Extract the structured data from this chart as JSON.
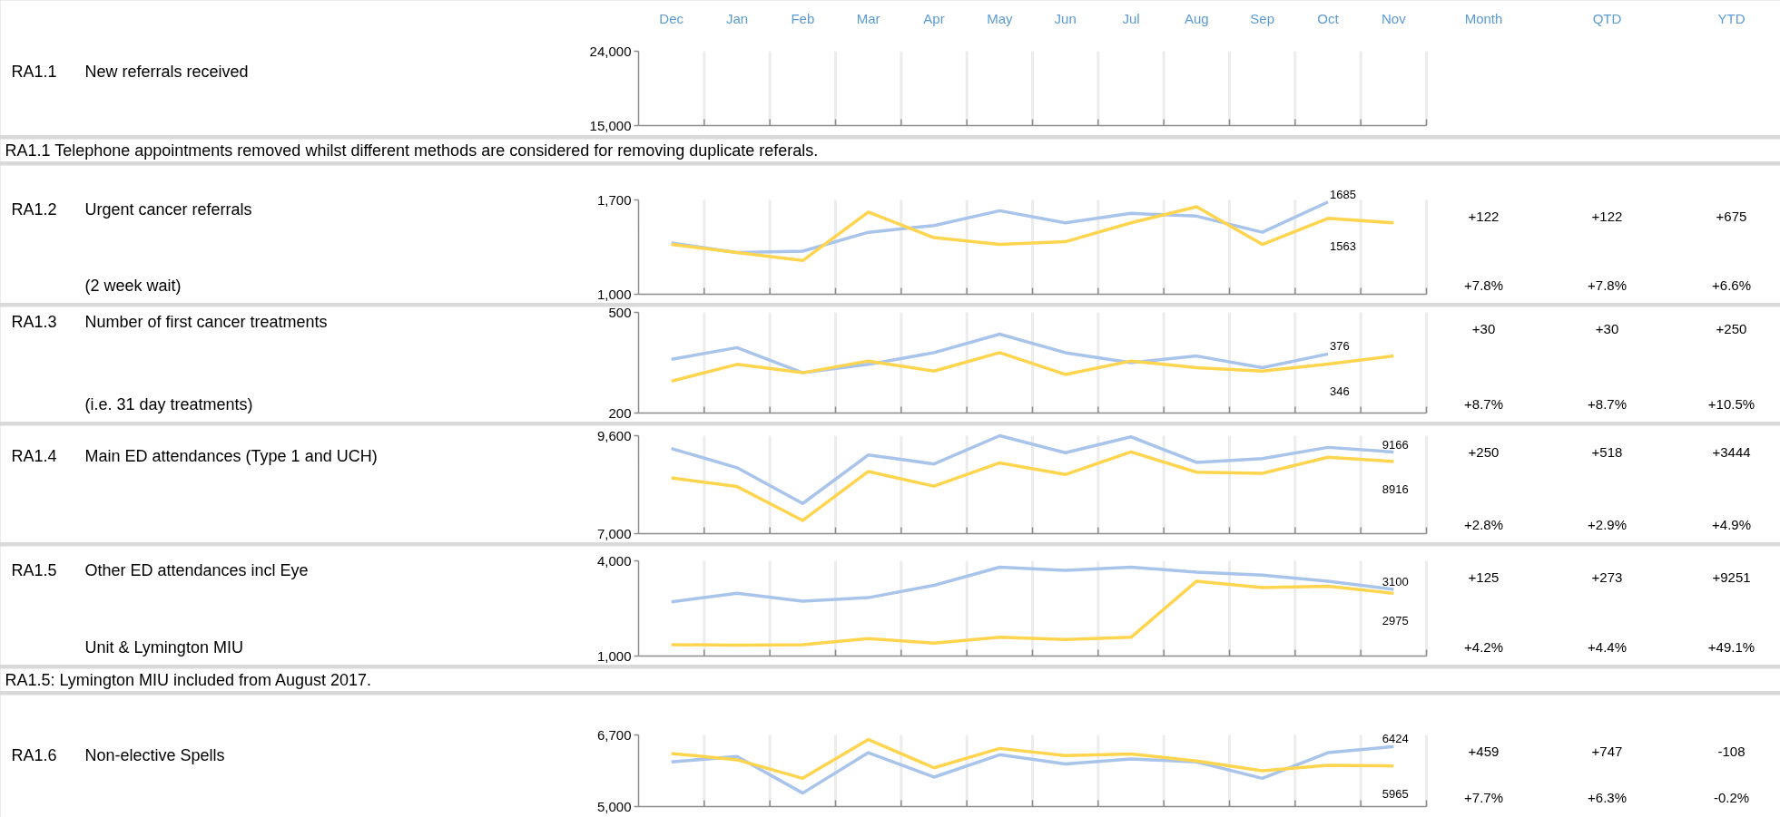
{
  "chart_data": [
    {
      "type": "line",
      "categories": [
        "Dec",
        "Jan",
        "Feb",
        "Mar",
        "Apr",
        "May",
        "Jun",
        "Jul",
        "Aug",
        "Sep",
        "Oct",
        "Nov"
      ],
      "values": [
        null,
        null,
        null,
        null,
        null,
        null,
        null,
        null,
        null,
        null,
        null,
        null
      ],
      "ylim": [
        15000,
        24000
      ],
      "yticks": [
        {
          "value": 15000,
          "label": "15,000"
        },
        {
          "value": 24000,
          "label": "24,000"
        }
      ],
      "grid": "x",
      "annotations": [
        "RA1.1",
        "New referrals received",
        "Month",
        "QTD",
        "YTD"
      ]
    },
    {
      "type": "other",
      "title": "RA1.1 Telephone appointments removed whilst different methods are considered for removing duplicate referals."
    },
    {
      "type": "line",
      "categories": [
        null,
        null,
        null,
        null,
        null,
        null,
        null,
        null,
        null,
        null,
        null,
        null
      ],
      "grid": "x",
      "ylim": [
        1000,
        1700
      ],
      "yticks": [
        {
          "value": 1000,
          "label": "1,000"
        },
        {
          "value": 1700,
          "label": "1,700"
        }
      ],
      "series": [
        {
          "color": "#a9c4eb",
          "values": [
            1380,
            1310,
            1320,
            1460,
            1510,
            1620,
            1530,
            1600,
            1580,
            1460,
            1685,
            null
          ],
          "value_labels": [
            null,
            null,
            null,
            null,
            null,
            null,
            null,
            null,
            null,
            null,
            "1685",
            null
          ]
        },
        {
          "color": "#ffd54f",
          "values": [
            1370,
            1310,
            1250,
            1610,
            1420,
            1370,
            1390,
            1530,
            1650,
            1370,
            1563,
            1530
          ],
          "value_labels": [
            null,
            null,
            null,
            null,
            null,
            null,
            null,
            null,
            null,
            null,
            "1563",
            null
          ]
        }
      ],
      "annotations": [
        "RA1.2",
        "Urgent cancer referrals",
        "(2 week wait)",
        "+122",
        "+122",
        "+675",
        "+7.8%",
        "+7.8%",
        "+6.6%"
      ]
    },
    {
      "type": "line",
      "categories": [
        null,
        null,
        null,
        null,
        null,
        null,
        null,
        null,
        null,
        null,
        null,
        null
      ],
      "grid": "x",
      "ylim": [
        200,
        500
      ],
      "yticks": [
        200,
        500
      ],
      "series": [
        {
          "color": "#a9c4eb",
          "values": [
            360,
            395,
            320,
            345,
            380,
            435,
            380,
            350,
            370,
            335,
            376,
            null
          ],
          "value_labels": [
            null,
            null,
            null,
            null,
            null,
            null,
            null,
            null,
            null,
            null,
            "376",
            null
          ]
        },
        {
          "color": "#ffd54f",
          "values": [
            295,
            345,
            320,
            355,
            325,
            380,
            315,
            355,
            335,
            325,
            346,
            370
          ],
          "value_labels": [
            null,
            null,
            null,
            null,
            null,
            null,
            null,
            null,
            null,
            null,
            "346",
            null
          ]
        }
      ],
      "annotations": [
        "RA1.3",
        "Number of first cancer treatments",
        "(i.e. 31 day treatments)",
        "+30",
        "+30",
        "+250",
        "+8.7%",
        "+8.7%",
        "+10.5%"
      ]
    },
    {
      "type": "line",
      "categories": [
        null,
        null,
        null,
        null,
        null,
        null,
        null,
        null,
        null,
        null,
        null,
        null
      ],
      "grid": "x",
      "ylim": [
        7000,
        9600
      ],
      "yticks": [
        {
          "value": 7000,
          "label": "7,000"
        },
        {
          "value": 9600,
          "label": "9,600"
        }
      ],
      "series": [
        {
          "color": "#a9c4eb",
          "values": [
            9260,
            8750,
            7800,
            9090,
            8850,
            9600,
            9150,
            9570,
            8890,
            8990,
            9290,
            9166
          ],
          "value_labels": [
            null,
            null,
            null,
            null,
            null,
            null,
            null,
            null,
            null,
            null,
            null,
            "9166"
          ]
        },
        {
          "color": "#ffd54f",
          "values": [
            8480,
            8250,
            7350,
            8650,
            8260,
            8880,
            8570,
            9170,
            8630,
            8600,
            9030,
            8916
          ],
          "value_labels": [
            null,
            null,
            null,
            null,
            null,
            null,
            null,
            null,
            null,
            null,
            null,
            "8916"
          ]
        }
      ],
      "annotations": [
        "RA1.4",
        "Main ED attendances (Type 1 and UCH)",
        "+250",
        "+518",
        "+3444",
        "+2.8%",
        "+2.9%",
        "+4.9%"
      ]
    },
    {
      "type": "line",
      "categories": [
        null,
        null,
        null,
        null,
        null,
        null,
        null,
        null,
        null,
        null,
        null,
        null
      ],
      "grid": "x",
      "ylim": [
        1000,
        4000
      ],
      "yticks": [
        {
          "value": 1000,
          "label": "1,000"
        },
        {
          "value": 4000,
          "label": "4,000"
        }
      ],
      "series": [
        {
          "color": "#a9c4eb",
          "values": [
            2710,
            2980,
            2730,
            2840,
            3230,
            3800,
            3700,
            3800,
            3640,
            3550,
            3360,
            3100
          ],
          "value_labels": [
            null,
            null,
            null,
            null,
            null,
            null,
            null,
            null,
            null,
            null,
            null,
            "3100"
          ]
        },
        {
          "color": "#ffd54f",
          "values": [
            1360,
            1340,
            1360,
            1550,
            1410,
            1590,
            1520,
            1590,
            3360,
            3160,
            3200,
            2975
          ],
          "value_labels": [
            null,
            null,
            null,
            null,
            null,
            null,
            null,
            null,
            null,
            null,
            null,
            "2975"
          ]
        }
      ],
      "annotations": [
        "RA1.5",
        "Other ED attendances incl Eye",
        "Unit & Lymington MIU",
        "+125",
        "+273",
        "+9251",
        "+4.2%",
        "+4.4%",
        "+49.1%"
      ]
    },
    {
      "type": "other",
      "title": "RA1.5: Lymington MIU included from August 2017."
    },
    {
      "type": "line",
      "categories": [
        null,
        null,
        null,
        null,
        null,
        null,
        null,
        null,
        null,
        null,
        null,
        null
      ],
      "grid": "x",
      "ylim": [
        5000,
        6700
      ],
      "yticks": [
        {
          "value": 5000,
          "label": "5,000"
        },
        {
          "value": 6700,
          "label": "6,700"
        }
      ],
      "series": [
        {
          "color": "#a9c4eb",
          "values": [
            6060,
            6190,
            5320,
            6280,
            5700,
            6230,
            6010,
            6130,
            6060,
            5670,
            6280,
            6424
          ],
          "value_labels": [
            null,
            null,
            null,
            null,
            null,
            null,
            null,
            null,
            null,
            null,
            null,
            "6424"
          ]
        },
        {
          "color": "#ffd54f",
          "values": [
            6260,
            6110,
            5670,
            6590,
            5920,
            6380,
            6210,
            6250,
            6080,
            5850,
            5980,
            5965
          ],
          "value_labels": [
            null,
            null,
            null,
            null,
            null,
            null,
            null,
            null,
            null,
            null,
            null,
            "5965"
          ]
        }
      ],
      "annotations": [
        "RA1.6",
        "Non-elective Spells",
        "+459",
        "+747",
        "-108",
        "+7.7%",
        "+6.3%",
        "-0.2%"
      ]
    }
  ]
}
